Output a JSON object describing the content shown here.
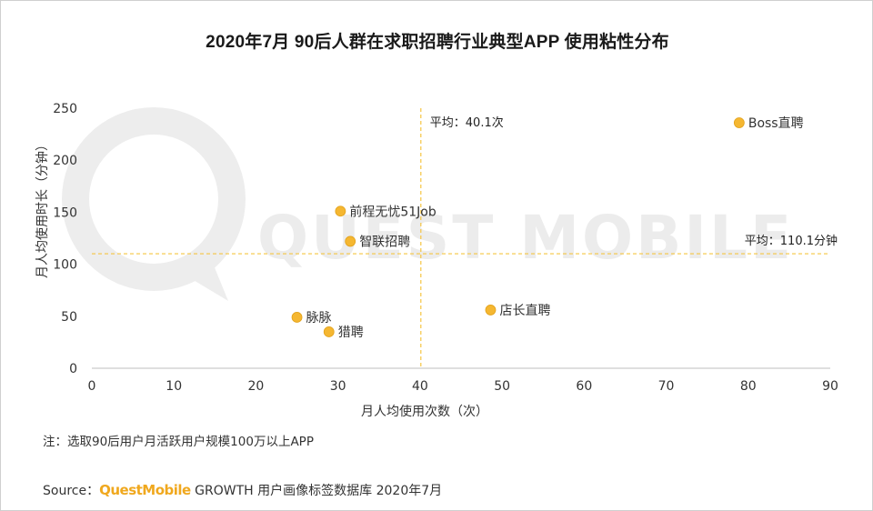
{
  "chart_data": {
    "type": "scatter",
    "title": "2020年7月 90后人群在求职招聘行业典型APP 使用粘性分布",
    "xlabel": "月人均使用次数（次）",
    "ylabel": "月人均使用时长（分钟）",
    "xlim": [
      0,
      90
    ],
    "ylim": [
      0,
      250
    ],
    "xticks": [
      "0",
      "10",
      "20",
      "30",
      "40",
      "50",
      "60",
      "70",
      "80",
      "90"
    ],
    "yticks": [
      "0",
      "50",
      "100",
      "150",
      "200",
      "250"
    ],
    "points": [
      {
        "label": "Boss直聘",
        "x": 78.9,
        "y": 236
      },
      {
        "label": "前程无忧51Job",
        "x": 30.3,
        "y": 151
      },
      {
        "label": "智联招聘",
        "x": 31.5,
        "y": 122
      },
      {
        "label": "店长直聘",
        "x": 48.6,
        "y": 56
      },
      {
        "label": "脉脉",
        "x": 25.0,
        "y": 49
      },
      {
        "label": "猎聘",
        "x": 28.9,
        "y": 35
      }
    ],
    "averages": {
      "x": {
        "value": 40.1,
        "label": "平均：40.1次"
      },
      "y": {
        "value": 110.1,
        "label": "平均：110.1分钟"
      }
    },
    "point_color": "#f5b731",
    "avg_line_color": "#f5c542",
    "grid": false
  },
  "watermark": {
    "text": "QUEST MOBILE"
  },
  "footnote": "注：选取90后用户月活跃用户规模100万以上APP",
  "source": {
    "prefix": "Source：",
    "brand": "QuestMobile",
    "rest": " GROWTH 用户画像标签数据库 2020年7月"
  }
}
